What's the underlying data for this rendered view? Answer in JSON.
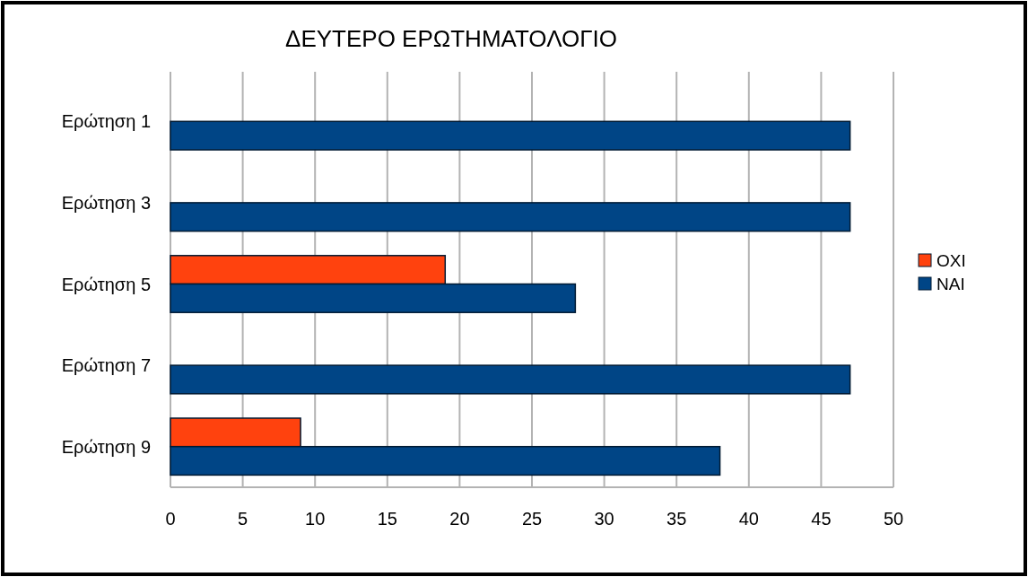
{
  "chart_data": {
    "type": "bar",
    "orientation": "horizontal",
    "title": "ΔΕΥΤΕΡΟ ΕΡΩΤΗΜΑΤΟΛΟΓΙΟ",
    "categories": [
      "Ερώτηση 1",
      "Ερώτηση 3",
      "Ερώτηση 5",
      "Ερώτηση 7",
      "Ερώτηση 9"
    ],
    "series": [
      {
        "name": "ΟΧΙ",
        "color": "#ff420e",
        "values": [
          null,
          null,
          19,
          null,
          9
        ]
      },
      {
        "name": "ΝΑΙ",
        "color": "#004586",
        "values": [
          47,
          47,
          28,
          47,
          38
        ]
      }
    ],
    "xlim": [
      0,
      50
    ],
    "xticks": [
      0,
      5,
      10,
      15,
      20,
      25,
      30,
      35,
      40,
      45,
      50
    ],
    "grid": "x",
    "legend": "right"
  }
}
